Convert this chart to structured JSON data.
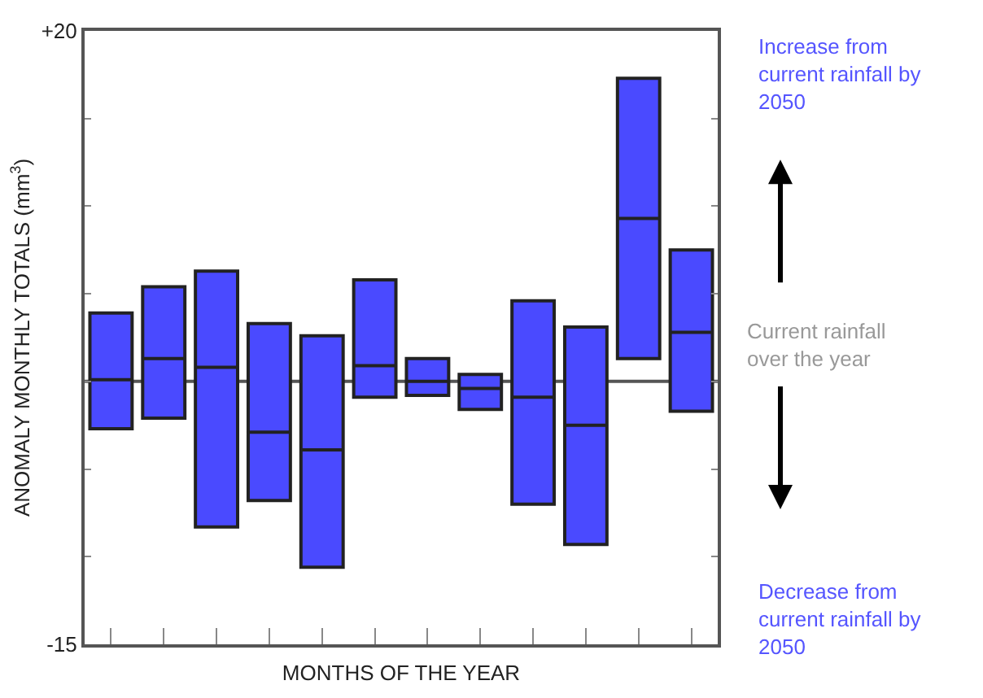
{
  "chart_data": {
    "type": "box",
    "xlabel": "MONTHS OF THE YEAR",
    "ylabel": "ANOMALY MONTHLY TOTALS (mm$^{3}$)",
    "categories": [
      null,
      null,
      null,
      null,
      null,
      null,
      null,
      null,
      null,
      null,
      null,
      null
    ],
    "series": [
      {
        "color": "#4a4aff",
        "boxes": [
          {
            "low": -2.7,
            "q1": -2.7,
            "median": 0.1,
            "q3": 3.9,
            "high": 3.9
          },
          {
            "low": -2.1,
            "q1": -2.1,
            "median": 1.3,
            "q3": 5.4,
            "high": 5.4
          },
          {
            "low": -8.3,
            "q1": -8.3,
            "median": 0.8,
            "q3": 6.3,
            "high": 6.3
          },
          {
            "low": -6.8,
            "q1": -6.8,
            "median": -2.9,
            "q3": 3.3,
            "high": 3.3
          },
          {
            "low": -10.6,
            "q1": -10.6,
            "median": -3.9,
            "q3": 2.6,
            "high": 2.6
          },
          {
            "low": -0.9,
            "q1": -0.9,
            "median": 0.9,
            "q3": 5.8,
            "high": 5.8
          },
          {
            "low": -0.8,
            "q1": -0.8,
            "median": 0.0,
            "q3": 1.3,
            "high": 1.3
          },
          {
            "low": -1.6,
            "q1": -1.6,
            "median": -0.4,
            "q3": 0.4,
            "high": 0.4
          },
          {
            "low": -7.0,
            "q1": -7.0,
            "median": -0.9,
            "q3": 4.6,
            "high": 4.6
          },
          {
            "low": -9.3,
            "q1": -9.3,
            "median": -2.5,
            "q3": 3.1,
            "high": 3.1
          },
          {
            "low": 1.3,
            "q1": 1.3,
            "median": 9.3,
            "q3": 17.3,
            "high": 17.3
          },
          {
            "low": -1.7,
            "q1": -1.7,
            "median": 2.8,
            "q3": 7.5,
            "high": 7.5
          }
        ]
      }
    ],
    "ylim": [
      -15,
      20
    ],
    "yticks": [
      {
        "value": -15,
        "label": "-15"
      },
      {
        "value": -10,
        "label": null
      },
      {
        "value": -5,
        "label": null
      },
      {
        "value": 0,
        "label": null
      },
      {
        "value": 5,
        "label": null
      },
      {
        "value": 10,
        "label": null
      },
      {
        "value": 15,
        "label": null
      },
      {
        "value": 20,
        "label": "+20"
      }
    ],
    "ref_lines": [
      {
        "axis": "y",
        "value": 0,
        "label": "Current rainfall over the year",
        "color": "#555555"
      }
    ],
    "annotations": [
      "Increase from current rainfall by 2050",
      "Decrease from current rainfall by 2050"
    ],
    "tick_labels": "y"
  }
}
